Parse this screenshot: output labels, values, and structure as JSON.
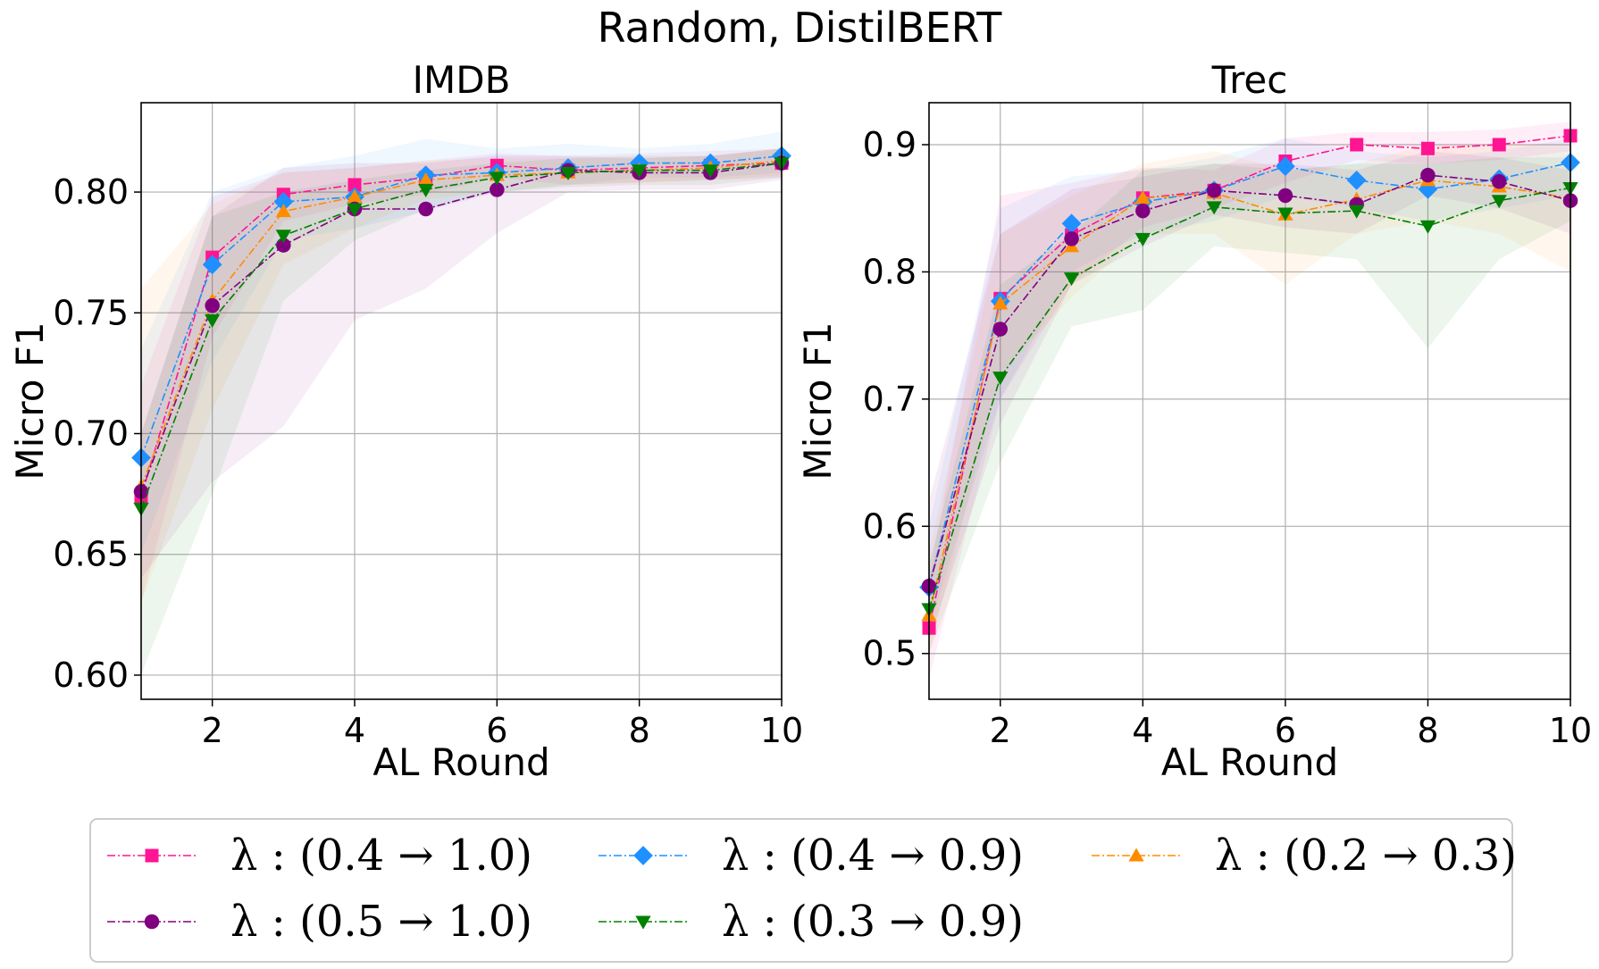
{
  "chart_data": {
    "type": "line",
    "suptitle": "Random, DistilBERT",
    "panels": [
      {
        "title": "IMDB",
        "xlabel": "AL Round",
        "ylabel": "Micro F1",
        "xlim": [
          1,
          10
        ],
        "ylim": [
          0.59,
          0.837
        ],
        "xticks": [
          2,
          4,
          6,
          8,
          10
        ],
        "yticks": [
          0.6,
          0.65,
          0.7,
          0.75,
          0.8
        ],
        "ytick_labels": [
          "0.60",
          "0.65",
          "0.70",
          "0.75",
          "0.80"
        ],
        "grid": true,
        "x": [
          1,
          2,
          3,
          4,
          5,
          6,
          7,
          8,
          9,
          10
        ],
        "series": [
          {
            "name": "(0.4 → 1.0)",
            "values": [
              0.674,
              0.773,
              0.799,
              0.803,
              0.806,
              0.811,
              0.809,
              0.81,
              0.811,
              0.812
            ],
            "low": [
              0.63,
              0.74,
              0.788,
              0.795,
              0.799,
              0.806,
              0.803,
              0.804,
              0.805,
              0.806
            ],
            "high": [
              0.72,
              0.798,
              0.808,
              0.81,
              0.813,
              0.816,
              0.815,
              0.816,
              0.817,
              0.818
            ]
          },
          {
            "name": "(0.4 → 0.9)",
            "values": [
              0.69,
              0.77,
              0.796,
              0.798,
              0.807,
              0.808,
              0.81,
              0.812,
              0.812,
              0.815
            ],
            "low": [
              0.65,
              0.73,
              0.78,
              0.785,
              0.792,
              0.8,
              0.803,
              0.806,
              0.806,
              0.808
            ],
            "high": [
              0.735,
              0.8,
              0.81,
              0.815,
              0.822,
              0.818,
              0.82,
              0.818,
              0.82,
              0.825
            ]
          },
          {
            "name": "(0.2 → 0.3)",
            "values": [
              0.678,
              0.755,
              0.792,
              0.798,
              0.805,
              0.807,
              0.808,
              0.809,
              0.81,
              0.813
            ],
            "low": [
              0.63,
              0.71,
              0.77,
              0.785,
              0.797,
              0.8,
              0.803,
              0.804,
              0.805,
              0.807
            ],
            "high": [
              0.76,
              0.795,
              0.808,
              0.81,
              0.813,
              0.814,
              0.814,
              0.814,
              0.815,
              0.818
            ]
          },
          {
            "name": "(0.5 → 1.0)",
            "values": [
              0.676,
              0.753,
              0.778,
              0.793,
              0.793,
              0.801,
              0.809,
              0.808,
              0.808,
              0.812
            ],
            "low": [
              0.64,
              0.68,
              0.703,
              0.747,
              0.76,
              0.783,
              0.8,
              0.801,
              0.801,
              0.805
            ],
            "high": [
              0.7,
              0.79,
              0.81,
              0.812,
              0.812,
              0.815,
              0.815,
              0.814,
              0.815,
              0.818
            ]
          },
          {
            "name": "(0.3 → 0.9)",
            "values": [
              0.669,
              0.747,
              0.782,
              0.793,
              0.801,
              0.806,
              0.808,
              0.809,
              0.809,
              0.812
            ],
            "low": [
              0.6,
              0.675,
              0.755,
              0.78,
              0.793,
              0.8,
              0.802,
              0.803,
              0.803,
              0.806
            ],
            "high": [
              0.7,
              0.79,
              0.8,
              0.805,
              0.809,
              0.812,
              0.814,
              0.815,
              0.815,
              0.818
            ]
          }
        ]
      },
      {
        "title": "Trec",
        "xlabel": "AL Round",
        "ylabel": "Micro F1",
        "xlim": [
          1,
          10
        ],
        "ylim": [
          0.464,
          0.933
        ],
        "xticks": [
          2,
          4,
          6,
          8,
          10
        ],
        "yticks": [
          0.5,
          0.6,
          0.7,
          0.8,
          0.9
        ],
        "ytick_labels": [
          "0.5",
          "0.6",
          "0.7",
          "0.8",
          "0.9"
        ],
        "grid": true,
        "x": [
          1,
          2,
          3,
          4,
          5,
          6,
          7,
          8,
          9,
          10
        ],
        "series": [
          {
            "name": "(0.4 → 1.0)",
            "values": [
              0.52,
              0.779,
              0.829,
              0.858,
              0.864,
              0.887,
              0.9,
              0.897,
              0.9,
              0.907
            ],
            "low": [
              0.48,
              0.7,
              0.79,
              0.835,
              0.85,
              0.87,
              0.888,
              0.885,
              0.888,
              0.895
            ],
            "high": [
              0.56,
              0.86,
              0.87,
              0.882,
              0.88,
              0.905,
              0.91,
              0.91,
              0.912,
              0.918
            ]
          },
          {
            "name": "(0.4 → 0.9)",
            "values": [
              0.552,
              0.777,
              0.838,
              0.855,
              0.864,
              0.883,
              0.872,
              0.865,
              0.873,
              0.886
            ],
            "low": [
              0.52,
              0.7,
              0.8,
              0.83,
              0.84,
              0.86,
              0.85,
              0.84,
              0.85,
              0.86
            ],
            "high": [
              0.6,
              0.85,
              0.875,
              0.88,
              0.89,
              0.905,
              0.895,
              0.89,
              0.895,
              0.905
            ]
          },
          {
            "name": "(0.2 → 0.3)",
            "values": [
              0.53,
              0.775,
              0.82,
              0.858,
              0.862,
              0.845,
              0.857,
              0.872,
              0.867,
              0.858
            ],
            "low": [
              0.5,
              0.72,
              0.78,
              0.83,
              0.83,
              0.79,
              0.83,
              0.84,
              0.83,
              0.8
            ],
            "high": [
              0.58,
              0.83,
              0.86,
              0.885,
              0.895,
              0.88,
              0.885,
              0.9,
              0.9,
              0.9
            ]
          },
          {
            "name": "(0.5 → 1.0)",
            "values": [
              0.553,
              0.755,
              0.826,
              0.848,
              0.864,
              0.86,
              0.853,
              0.876,
              0.871,
              0.856
            ],
            "low": [
              0.51,
              0.68,
              0.79,
              0.82,
              0.845,
              0.835,
              0.83,
              0.86,
              0.85,
              0.83
            ],
            "high": [
              0.62,
              0.83,
              0.865,
              0.875,
              0.885,
              0.885,
              0.88,
              0.895,
              0.89,
              0.88
            ]
          },
          {
            "name": "(0.3 → 0.9)",
            "values": [
              0.535,
              0.717,
              0.795,
              0.826,
              0.851,
              0.846,
              0.848,
              0.836,
              0.856,
              0.866
            ],
            "low": [
              0.5,
              0.65,
              0.757,
              0.77,
              0.82,
              0.815,
              0.81,
              0.74,
              0.81,
              0.84
            ],
            "high": [
              0.57,
              0.79,
              0.83,
              0.88,
              0.885,
              0.88,
              0.885,
              0.885,
              0.89,
              0.89
            ]
          }
        ]
      }
    ],
    "legend": {
      "placement": "bottom-center",
      "symbol": "λ :",
      "entries": [
        {
          "name": "(0.4 → 1.0)",
          "color": "#ff1493",
          "marker": "square"
        },
        {
          "name": "(0.5 → 1.0)",
          "color": "#800080",
          "marker": "circle"
        },
        {
          "name": "(0.4 → 0.9)",
          "color": "#1e90ff",
          "marker": "diamond"
        },
        {
          "name": "(0.3 → 0.9)",
          "color": "#008000",
          "marker": "triangle-down"
        },
        {
          "name": "(0.2 → 0.3)",
          "color": "#ff8c00",
          "marker": "triangle-up"
        }
      ]
    }
  }
}
